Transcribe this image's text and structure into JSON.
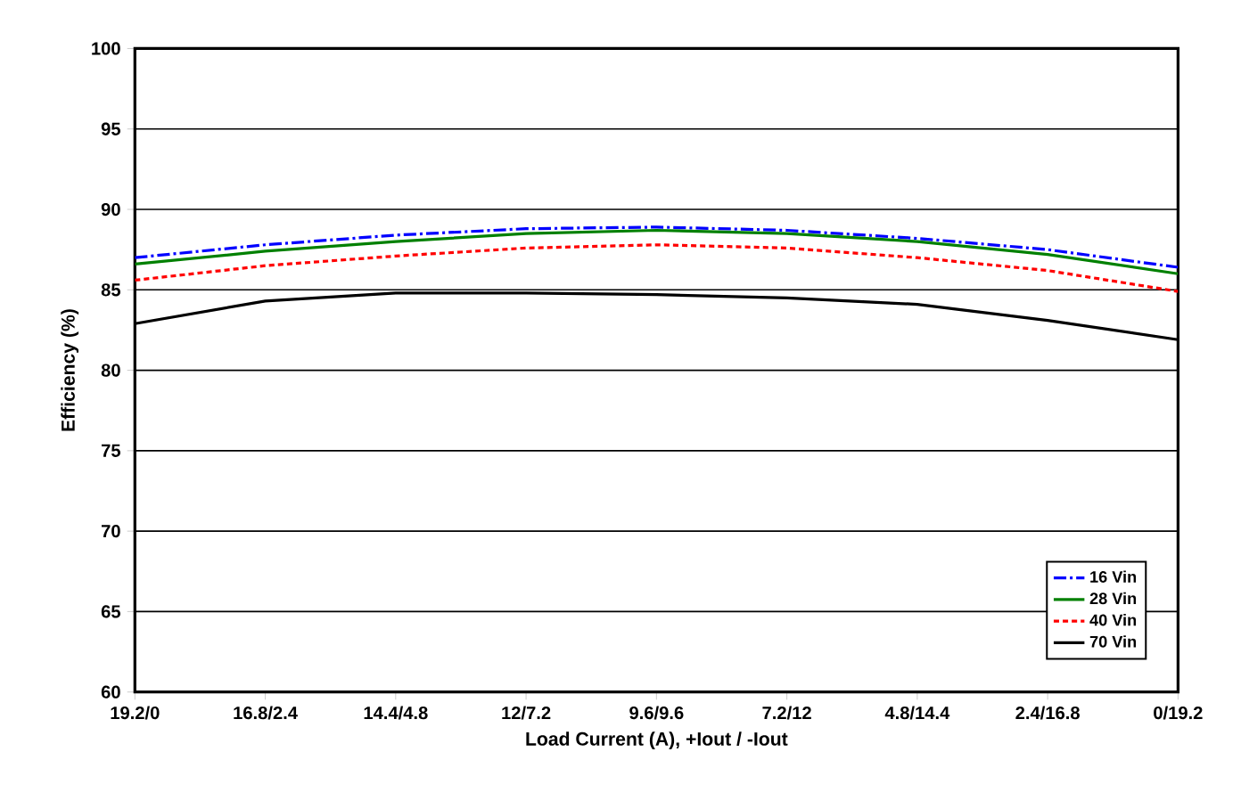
{
  "chart_data": {
    "type": "line",
    "xlabel": "Load Current (A), +Iout / -Iout",
    "ylabel": "Efficiency (%)",
    "categories": [
      "19.2/0",
      "16.8/2.4",
      "14.4/4.8",
      "12/7.2",
      "9.6/9.6",
      "7.2/12",
      "4.8/14.4",
      "2.4/16.8",
      "0/19.2"
    ],
    "series": [
      {
        "name": "16 Vin",
        "color": "#0000ff",
        "line_style": "dashdot",
        "values": [
          87.0,
          87.8,
          88.4,
          88.8,
          88.9,
          88.7,
          88.2,
          87.5,
          86.4
        ]
      },
      {
        "name": "28 Vin",
        "color": "#008000",
        "line_style": "solid",
        "values": [
          86.6,
          87.4,
          88.0,
          88.5,
          88.7,
          88.5,
          88.0,
          87.2,
          86.0
        ]
      },
      {
        "name": "40 Vin",
        "color": "#ff0000",
        "line_style": "dashed",
        "values": [
          85.6,
          86.5,
          87.1,
          87.6,
          87.8,
          87.6,
          87.0,
          86.2,
          84.9
        ]
      },
      {
        "name": "70 Vin",
        "color": "#000000",
        "line_style": "solid",
        "values": [
          82.9,
          84.3,
          84.8,
          84.8,
          84.7,
          84.5,
          84.1,
          83.1,
          81.9
        ]
      }
    ],
    "ylim": [
      60,
      100
    ],
    "yticks": [
      60,
      65,
      70,
      75,
      80,
      85,
      90,
      95,
      100
    ],
    "grid": "y",
    "legend": "bottom right"
  }
}
